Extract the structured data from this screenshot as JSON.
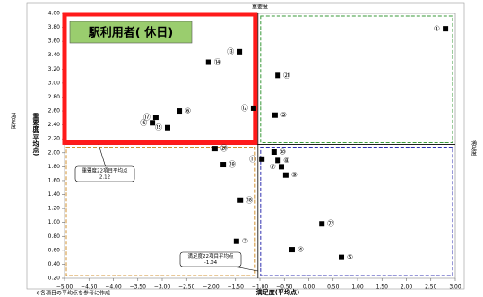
{
  "chart_data": {
    "type": "scatter",
    "title": "駅利用者( 休日)",
    "top_label": "重要度",
    "right_label": "満足度",
    "left_label": "満足度",
    "x_label": "満足度(平均点)",
    "y_label": "重要度(平均点)",
    "footnote": "※各項目の平均点を参考に作成",
    "x_mean_label": "満足度22項目平均点",
    "x_mean": -1.04,
    "y_mean_label": "重要度22項目平均点",
    "y_mean": 2.12,
    "point_labels": [
      "①",
      "②",
      "③",
      "④",
      "⑤",
      "⑥",
      "⑦",
      "⑧",
      "⑨",
      "⑩",
      "⑪",
      "⑫",
      "⑬",
      "⑭",
      "⑮",
      "⑯",
      "⑰",
      "⑱",
      "⑲",
      "⑳",
      "㉑",
      "㉒"
    ],
    "series": [
      {
        "color": "#000000",
        "x": [
          2.8,
          -0.69,
          -1.48,
          -0.34,
          0.67,
          -2.65,
          -0.56,
          -0.63,
          -0.47,
          -0.71,
          -0.96,
          -1.13,
          -1.42,
          -2.05,
          -2.89,
          -3.2,
          -3.13,
          -1.4,
          -1.75,
          -1.92,
          -0.63,
          0.27
        ],
        "values": [
          3.78,
          2.54,
          0.73,
          0.61,
          0.5,
          2.6,
          1.8,
          1.89,
          1.68,
          2.01,
          1.91,
          2.64,
          3.45,
          3.3,
          2.36,
          2.43,
          2.51,
          1.32,
          1.83,
          2.06,
          3.11,
          0.98
        ]
      }
    ],
    "xlim": [
      -5,
      3
    ],
    "ylim": [
      0.2,
      4.0
    ],
    "xticks": [
      {
        "value": -5,
        "label": "−5.00"
      },
      {
        "value": -4.5,
        "label": "−4.50"
      },
      {
        "value": -4,
        "label": "−4.00"
      },
      {
        "value": -3.5,
        "label": "−3.50"
      },
      {
        "value": -3,
        "label": "−3.00"
      },
      {
        "value": -2.5,
        "label": "−2.50"
      },
      {
        "value": -2,
        "label": "−2.00"
      },
      {
        "value": -1.5,
        "label": "−1.50"
      },
      {
        "value": -1,
        "label": "−1.00"
      },
      {
        "value": -0.5,
        "label": "−0.50"
      },
      {
        "value": 0,
        "label": "0.00"
      },
      {
        "value": 0.5,
        "label": "0.50"
      },
      {
        "value": 1,
        "label": "1.00"
      },
      {
        "value": 1.5,
        "label": "1.50"
      },
      {
        "value": 2,
        "label": "2.00"
      },
      {
        "value": 2.5,
        "label": "2.50"
      },
      {
        "value": 3,
        "label": "3.00"
      }
    ],
    "yticks": [
      {
        "value": 0.2,
        "label": "0.20"
      },
      {
        "value": 0.4,
        "label": "0.40"
      },
      {
        "value": 0.6,
        "label": "0.60"
      },
      {
        "value": 0.8,
        "label": "0.80"
      },
      {
        "value": 1.0,
        "label": "1.00"
      },
      {
        "value": 1.2,
        "label": "1.20"
      },
      {
        "value": 1.4,
        "label": "1.40"
      },
      {
        "value": 1.6,
        "label": "1.60"
      },
      {
        "value": 1.8,
        "label": "1.80"
      },
      {
        "value": 2.0,
        "label": "2.00"
      },
      {
        "value": 2.2,
        "label": "2.20"
      },
      {
        "value": 2.4,
        "label": "2.40"
      },
      {
        "value": 2.6,
        "label": "2.60"
      },
      {
        "value": 2.8,
        "label": "2.80"
      },
      {
        "value": 3.0,
        "label": "3.00"
      },
      {
        "value": 3.2,
        "label": "3.20"
      },
      {
        "value": 3.4,
        "label": "3.40"
      },
      {
        "value": 3.6,
        "label": "3.60"
      },
      {
        "value": 3.8,
        "label": "3.80"
      },
      {
        "value": 4.0,
        "label": "4.00"
      }
    ]
  }
}
